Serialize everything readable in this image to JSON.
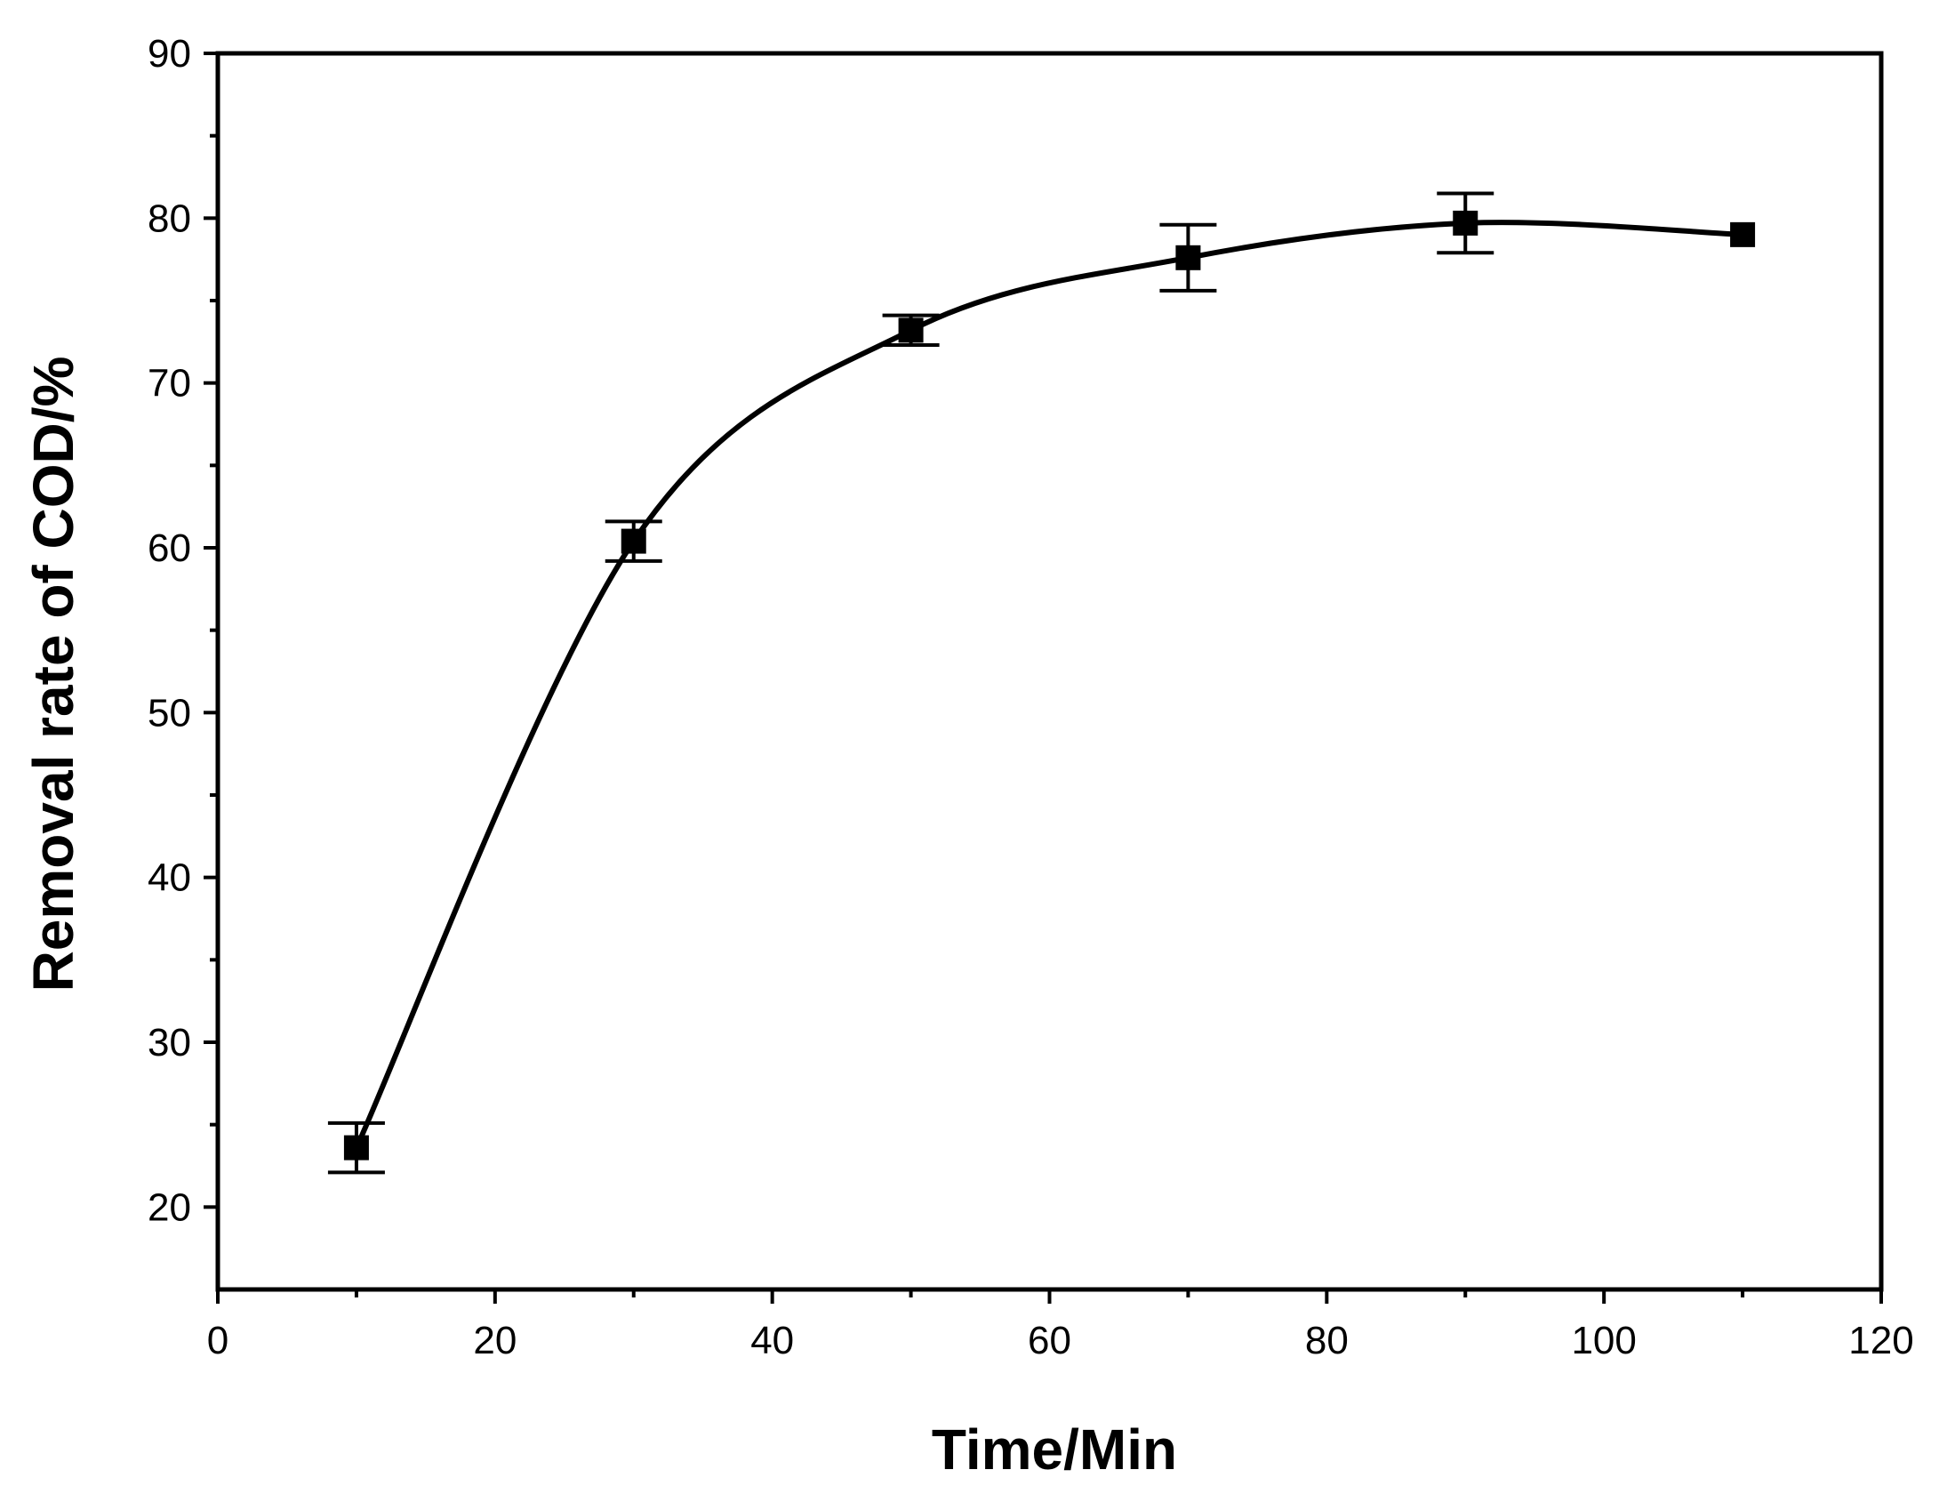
{
  "chart_data": {
    "type": "line",
    "title": "",
    "xlabel": "Time/Min",
    "ylabel": "Removal rate of COD/%",
    "xlim": [
      0,
      120
    ],
    "ylim": [
      15,
      90
    ],
    "x_ticks": [
      0,
      20,
      40,
      60,
      80,
      100,
      120
    ],
    "y_ticks": [
      20,
      30,
      40,
      50,
      60,
      70,
      80,
      90
    ],
    "grid": false,
    "legend": "none",
    "line_color": "#000000",
    "marker": "square",
    "series": [
      {
        "x": [
          10,
          30,
          50,
          70,
          90,
          110
        ],
        "y": [
          23.6,
          60.4,
          73.2,
          77.6,
          79.7,
          79.0
        ],
        "error": [
          1.5,
          1.2,
          0.9,
          2.0,
          1.8,
          0
        ]
      }
    ]
  }
}
